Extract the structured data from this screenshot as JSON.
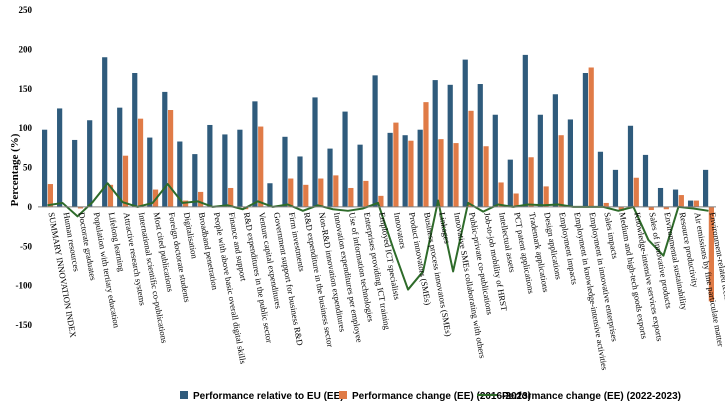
{
  "chart_data": {
    "type": "bar",
    "ylabel": "Percentage (%)",
    "ylim": [
      -150,
      250
    ],
    "yticks": [
      -150,
      -100,
      -50,
      0,
      50,
      100,
      150,
      200,
      250
    ],
    "grid": false,
    "legend_position": "bottom",
    "colors": {
      "series1": "#2f5b7c",
      "series2": "#e07b47",
      "series3": "#2e6b2a"
    },
    "categories": [
      "SUMMARY INNOVATION INDEX",
      "Human resources",
      "Doctorate graduates",
      "Population with tertiary education",
      "Lifelong learning",
      "Attractive research systems",
      "International scientific co-publications",
      "Most cited publications",
      "Foreign doctorate students",
      "Digitalisation",
      "Broadband penetration",
      "People with above basic overall digital skills",
      "Finance and support",
      "R&D expenditures in the public sector",
      "Venture capital expenditures",
      "Government support for business R&D",
      "Firm investments",
      "R&D expenditure in the business sector",
      "Non-R&D innovation expenditures",
      "Innovation expenditures per employee",
      "Use of information technologies",
      "Enterprises providing ICT training",
      "Employed ICT specialists",
      "Innovators",
      "Product innovators (SMEs)",
      "Business process innovators (SMEs)",
      "Linkages",
      "Innovative SMEs collaborating with others",
      "Public-private co-publications",
      "Job-to-job mobility of HRST",
      "Intellectual assets",
      "PCT patent applications",
      "Trademark applications",
      "Design applications",
      "Employment impacts",
      "Employment in knowledge-intensive activities",
      "Employment in innovative enterprises",
      "Sales impacts",
      "Medium and high-tech goods exports",
      "Knowledge-intensive services exports",
      "Sales of innovative products",
      "Environmental sustainability",
      "Resource productivity",
      "Air emissions by fine particulate matter",
      "Environment-related technologies"
    ],
    "series": [
      {
        "name": "Performance relative to EU (EE)",
        "values": [
          98,
          125,
          85,
          110,
          190,
          126,
          170,
          88,
          146,
          83,
          67,
          104,
          92,
          98,
          134,
          30,
          89,
          64,
          139,
          74,
          121,
          79,
          167,
          94,
          91,
          98,
          161,
          155,
          187,
          156,
          117,
          60,
          193,
          117,
          143,
          111,
          170,
          70,
          47,
          103,
          66,
          24,
          22,
          8,
          47
        ]
      },
      {
        "name": "Performance change (EE) (2016-2023)",
        "values": [
          29,
          0,
          -2,
          0,
          28,
          65,
          112,
          22,
          123,
          8,
          19,
          0,
          24,
          -3,
          102,
          0,
          36,
          28,
          36,
          40,
          24,
          33,
          14,
          107,
          84,
          133,
          86,
          81,
          122,
          77,
          31,
          17,
          63,
          26,
          91,
          0,
          177,
          5,
          -5,
          37,
          -4,
          -3,
          15,
          8,
          -120
        ]
      },
      {
        "name": "Performance change (EE)  (2022-2023)",
        "values": [
          2,
          5,
          -12,
          6,
          30,
          6,
          0,
          5,
          29,
          5,
          7,
          0,
          2,
          -3,
          7,
          0,
          3,
          -5,
          2,
          -3,
          -5,
          -2,
          5,
          -52,
          -105,
          -82,
          8,
          -82,
          5,
          -6,
          3,
          0,
          3,
          2,
          3,
          0,
          0,
          0,
          -5,
          0,
          -42,
          -62,
          0,
          -2,
          -5
        ]
      }
    ]
  }
}
